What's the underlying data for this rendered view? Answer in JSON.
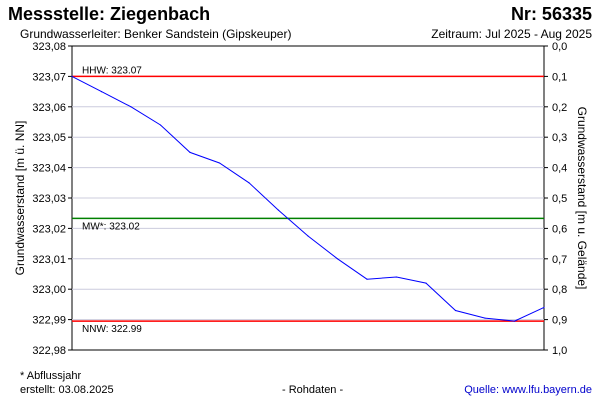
{
  "header": {
    "title": "Messstelle: Ziegenbach",
    "number": "Nr: 56335",
    "aquifer": "Grundwasserleiter:   Benker Sandstein (Gipskeuper)",
    "period": "Zeitraum: Jul 2025 - Aug 2025"
  },
  "footer": {
    "note": "* Abflussjahr",
    "created": "erstellt:  03.08.2025",
    "raw": "- Rohdaten -",
    "source": "Quelle: www.lfu.bayern.de"
  },
  "colors": {
    "series": "#0000ff",
    "hhw": "#ff0000",
    "mw": "#008000",
    "nnw": "#ff0000",
    "grid": "#ccccdd"
  },
  "chart_data": {
    "type": "line",
    "ylabel": "Grundwasserstand [m ü. NN]",
    "y2label": "Grundwasserstand [m u. Gelände]",
    "ylim": [
      322.98,
      323.08
    ],
    "y2lim": [
      0.0,
      1.0
    ],
    "yticks": [
      "323,08",
      "323,07",
      "323,06",
      "323,05",
      "323,04",
      "323,03",
      "323,02",
      "323,01",
      "323,00",
      "322,99",
      "322,98"
    ],
    "y2ticks": [
      "0,0",
      "0,1",
      "0,2",
      "0,3",
      "0,4",
      "0,5",
      "0,6",
      "0,7",
      "0,8",
      "0,9",
      "1,0"
    ],
    "grid": true,
    "series": [
      {
        "values": [
          323.07,
          323.065,
          323.06,
          323.054,
          323.045,
          323.0415,
          323.035,
          323.026,
          323.0175,
          323.01,
          323.0033,
          323.004,
          323.002,
          322.993,
          322.9905,
          322.9895,
          322.994
        ]
      }
    ],
    "reference_lines": [
      {
        "label": "HHW: 323.07",
        "value": 323.07,
        "color": "#ff0000"
      },
      {
        "label": "MW*: 323.02",
        "value": 323.0233,
        "color": "#008000"
      },
      {
        "label": "NNW: 322.99",
        "value": 322.9895,
        "color": "#ff0000"
      }
    ]
  }
}
